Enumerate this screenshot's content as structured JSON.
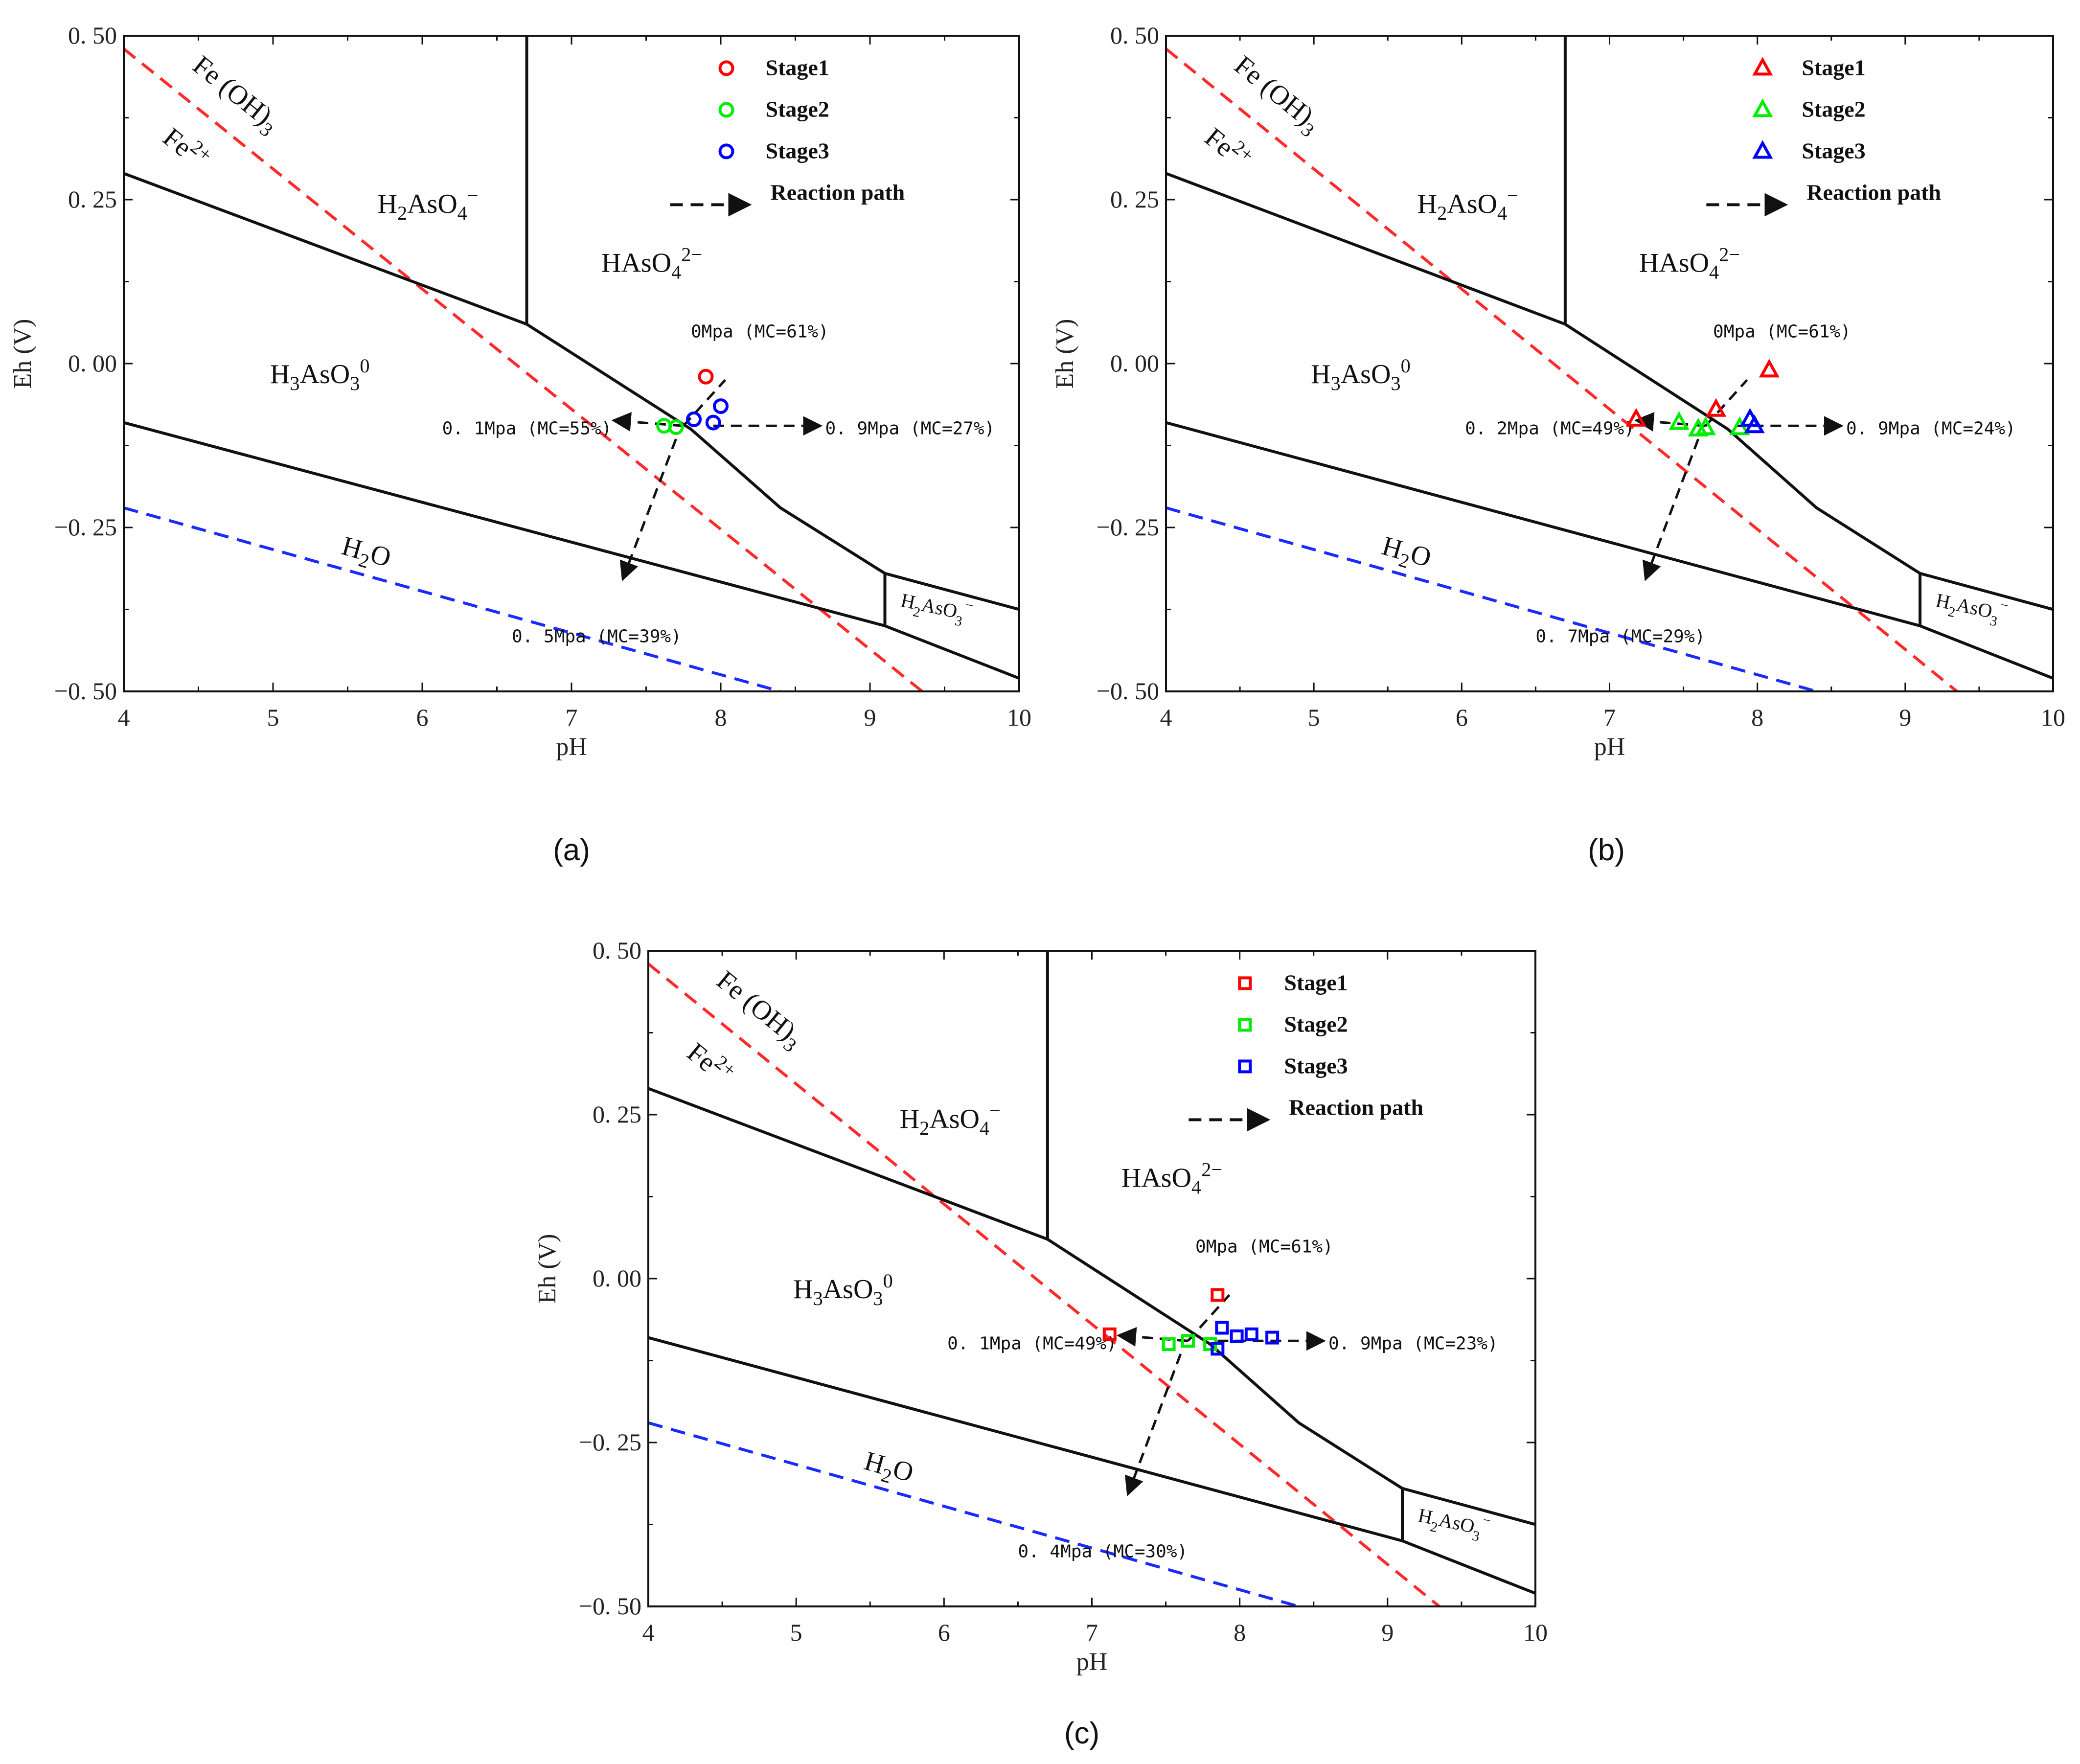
{
  "chart_data": [
    {
      "type": "scatter",
      "panel_label": "(a)",
      "marker": "circle",
      "xlabel": "pH",
      "ylabel": "Eh (V)",
      "xlim": [
        4,
        10
      ],
      "ylim": [
        -0.5,
        0.5
      ],
      "xticks": [
        "4",
        "5",
        "6",
        "7",
        "8",
        "9",
        "10"
      ],
      "yticks": [
        "0. 50",
        "0. 25",
        "0. 00",
        "−0. 25",
        "−0. 50"
      ],
      "legend": [
        "Stage1",
        "Stage2",
        "Stage3",
        "Reaction path"
      ],
      "series": [
        {
          "name": "Stage1",
          "color": "#ff0000",
          "points": [
            [
              7.9,
              -0.02
            ]
          ]
        },
        {
          "name": "Stage2",
          "color": "#00ee00",
          "points": [
            [
              7.62,
              -0.095
            ],
            [
              7.7,
              -0.097
            ]
          ]
        },
        {
          "name": "Stage3",
          "color": "#0000ff",
          "points": [
            [
              7.82,
              -0.085
            ],
            [
              7.95,
              -0.09
            ],
            [
              8.0,
              -0.065
            ]
          ]
        }
      ],
      "annotations": [
        "0Mpa (MC=61%)",
        "0. 1Mpa (MC=55%)",
        "0. 9Mpa (MC=27%)",
        "0. 5Mpa (MC=39%)"
      ]
    },
    {
      "type": "scatter",
      "panel_label": "(b)",
      "marker": "triangle",
      "xlabel": "pH",
      "ylabel": "Eh (V)",
      "xlim": [
        4,
        10
      ],
      "ylim": [
        -0.5,
        0.5
      ],
      "xticks": [
        "4",
        "5",
        "6",
        "7",
        "8",
        "9",
        "10"
      ],
      "yticks": [
        "0. 50",
        "0. 25",
        "0. 00",
        "−0. 25",
        "−0. 50"
      ],
      "legend": [
        "Stage1",
        "Stage2",
        "Stage3",
        "Reaction path"
      ],
      "series": [
        {
          "name": "Stage1",
          "color": "#ff0000",
          "points": [
            [
              8.08,
              -0.01
            ],
            [
              7.72,
              -0.07
            ],
            [
              7.18,
              -0.085
            ]
          ]
        },
        {
          "name": "Stage2",
          "color": "#00ee00",
          "points": [
            [
              7.47,
              -0.09
            ],
            [
              7.6,
              -0.1
            ],
            [
              7.65,
              -0.098
            ],
            [
              7.88,
              -0.098
            ]
          ]
        },
        {
          "name": "Stage3",
          "color": "#0000ff",
          "points": [
            [
              7.95,
              -0.085
            ],
            [
              7.98,
              -0.095
            ]
          ]
        }
      ],
      "annotations": [
        "0Mpa (MC=61%)",
        "0. 2Mpa (MC=49%)",
        "0. 9Mpa (MC=24%)",
        "0. 7Mpa (MC=29%)"
      ]
    },
    {
      "type": "scatter",
      "panel_label": "(c)",
      "marker": "square",
      "xlabel": "pH",
      "ylabel": "Eh (V)",
      "xlim": [
        4,
        10
      ],
      "ylim": [
        -0.5,
        0.5
      ],
      "xticks": [
        "4",
        "5",
        "6",
        "7",
        "8",
        "9",
        "10"
      ],
      "yticks": [
        "0. 50",
        "0. 25",
        "0. 00",
        "−0. 25",
        "−0. 50"
      ],
      "legend": [
        "Stage1",
        "Stage2",
        "Stage3",
        "Reaction path"
      ],
      "series": [
        {
          "name": "Stage1",
          "color": "#ff0000",
          "points": [
            [
              7.85,
              -0.025
            ],
            [
              7.12,
              -0.085
            ]
          ]
        },
        {
          "name": "Stage2",
          "color": "#00ee00",
          "points": [
            [
              7.52,
              -0.1
            ],
            [
              7.65,
              -0.095
            ],
            [
              7.8,
              -0.1
            ]
          ]
        },
        {
          "name": "Stage3",
          "color": "#0000ff",
          "points": [
            [
              7.88,
              -0.075
            ],
            [
              7.98,
              -0.088
            ],
            [
              8.08,
              -0.085
            ],
            [
              8.22,
              -0.09
            ],
            [
              7.85,
              -0.107
            ]
          ]
        }
      ],
      "annotations": [
        "0Mpa (MC=61%)",
        "0. 1Mpa (MC=49%)",
        "0. 9Mpa (MC=23%)",
        "0. 4Mpa (MC=30%)"
      ]
    }
  ],
  "regions": {
    "fe_oh3": "Fe (OH)",
    "fe_oh3_sub": "3",
    "fe2": "Fe",
    "fe2_sup": "2+",
    "h2aso4": "H",
    "h2aso4_mid": "AsO",
    "h2aso4_sub1": "2",
    "h2aso4_sub2": "4",
    "h2aso4_sup": "−",
    "haso4": "HAsO",
    "haso4_sub": "4",
    "haso4_sup": "2−",
    "h3aso3": "H",
    "h3aso3_sub1": "3",
    "h3aso3_mid": "AsO",
    "h3aso3_sub2": "3",
    "h3aso3_sup": "0",
    "h2o": "H",
    "h2o_sub": "2",
    "h2o_end": "O",
    "h2aso3": "H",
    "h2aso3_sub1": "2",
    "h2aso3_mid": "AsO",
    "h2aso3_sub2": "3",
    "h2aso3_sup": "−"
  },
  "colors": {
    "fe_line": "#ff2a2a",
    "water_line": "#1a2bff",
    "boundary": "#111111"
  }
}
